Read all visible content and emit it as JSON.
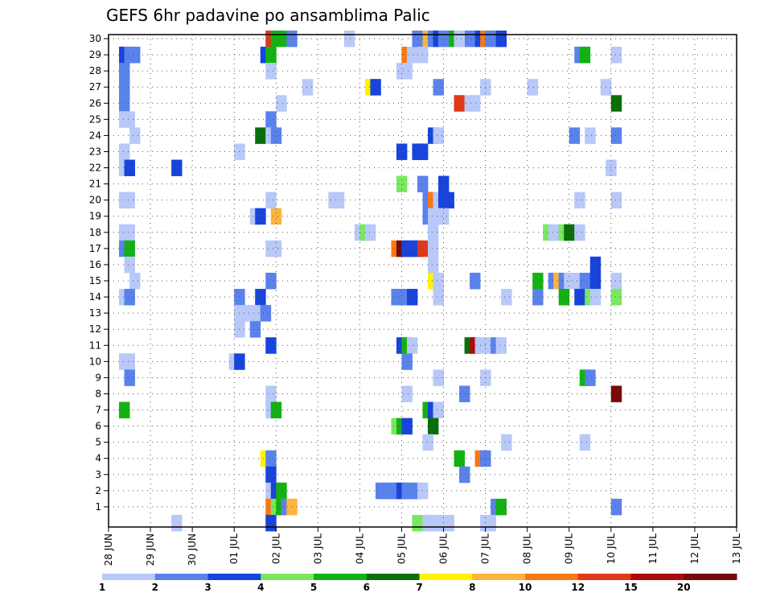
{
  "chart_data": {
    "type": "heatmap",
    "title": "GEFS 6hr padavine po ansamblima Palic",
    "xlabel": "",
    "ylabel": "",
    "x_tick_labels": [
      "28 JUN",
      "29 JUN",
      "30 JUN",
      "01 JUL",
      "02 JUL",
      "03 JUL",
      "04 JUL",
      "05 JUL",
      "06 JUL",
      "07 JUL",
      "08 JUL",
      "09 JUL",
      "10 JUL",
      "11 JUL",
      "12 JUL",
      "13 JUL"
    ],
    "x_range_days": [
      0,
      15
    ],
    "y_tick_labels": [
      "1",
      "2",
      "3",
      "4",
      "5",
      "6",
      "7",
      "8",
      "9",
      "10",
      "11",
      "12",
      "13",
      "14",
      "15",
      "16",
      "17",
      "18",
      "19",
      "20",
      "21",
      "22",
      "23",
      "24",
      "25",
      "26",
      "27",
      "28",
      "29",
      "30"
    ],
    "y_range": [
      0,
      30
    ],
    "grid": true,
    "legend": {
      "placement": "bottom",
      "bin_labels": [
        "1",
        "2",
        "3",
        "4",
        "5",
        "6",
        "7",
        "8",
        "10",
        "12",
        "15",
        "20"
      ],
      "colors": [
        "#b8c8f8",
        "#5a82ec",
        "#1844dc",
        "#7ae85c",
        "#12b212",
        "#0a6e0a",
        "#fff200",
        "#fcb43c",
        "#f87814",
        "#e03818",
        "#aa0c0c",
        "#780a0a"
      ]
    },
    "cells_format": [
      "day_offset",
      "member",
      "color_class"
    ],
    "cells": [
      [
        0.25,
        29,
        2
      ],
      [
        0.25,
        28,
        1
      ],
      [
        0.375,
        29,
        1
      ],
      [
        0.5,
        29,
        1
      ],
      [
        0.25,
        27,
        1
      ],
      [
        0.25,
        26,
        1
      ],
      [
        0.25,
        25,
        0
      ],
      [
        0.375,
        25,
        0
      ],
      [
        0.5,
        24,
        0
      ],
      [
        0.25,
        23,
        0
      ],
      [
        0.25,
        22,
        0
      ],
      [
        0.375,
        22,
        2
      ],
      [
        1.5,
        22,
        2
      ],
      [
        0.25,
        20,
        0
      ],
      [
        0.375,
        20,
        0
      ],
      [
        0.25,
        18,
        0
      ],
      [
        0.375,
        18,
        0
      ],
      [
        0.25,
        17,
        1
      ],
      [
        0.375,
        17,
        4
      ],
      [
        0.375,
        16,
        0
      ],
      [
        0.5,
        15,
        0
      ],
      [
        0.25,
        14,
        0
      ],
      [
        0.375,
        14,
        1
      ],
      [
        0.25,
        10,
        0
      ],
      [
        0.375,
        10,
        0
      ],
      [
        0.375,
        9,
        1
      ],
      [
        0.25,
        7,
        4
      ],
      [
        1.5,
        0,
        0
      ],
      [
        3.75,
        30,
        9
      ],
      [
        3.875,
        30,
        4
      ],
      [
        4,
        30,
        4
      ],
      [
        4.25,
        30,
        1
      ],
      [
        3.625,
        29,
        2
      ],
      [
        3.75,
        29,
        4
      ],
      [
        3.75,
        28,
        0
      ],
      [
        4,
        26,
        0
      ],
      [
        3.75,
        25,
        1
      ],
      [
        3.5,
        24,
        5
      ],
      [
        3.75,
        24,
        0
      ],
      [
        3.875,
        24,
        1
      ],
      [
        3,
        23,
        0
      ],
      [
        3.375,
        19,
        0
      ],
      [
        3.5,
        19,
        2
      ],
      [
        3.875,
        19,
        7
      ],
      [
        3.75,
        20,
        0
      ],
      [
        3.75,
        17,
        0
      ],
      [
        3.875,
        17,
        0
      ],
      [
        3.75,
        15,
        1
      ],
      [
        3,
        14,
        1
      ],
      [
        3.5,
        14,
        2
      ],
      [
        3,
        13,
        0
      ],
      [
        3.125,
        13,
        0
      ],
      [
        3.25,
        13,
        0
      ],
      [
        3.375,
        13,
        0
      ],
      [
        3.625,
        13,
        1
      ],
      [
        3,
        12,
        0
      ],
      [
        3.375,
        12,
        1
      ],
      [
        3.75,
        11,
        2
      ],
      [
        2.875,
        10,
        0
      ],
      [
        3,
        10,
        2
      ],
      [
        3.75,
        8,
        0
      ],
      [
        3.75,
        7,
        0
      ],
      [
        3.875,
        7,
        4
      ],
      [
        3.625,
        4,
        6
      ],
      [
        3.75,
        4,
        1
      ],
      [
        3.75,
        3,
        2
      ],
      [
        3.75,
        2,
        0
      ],
      [
        3.875,
        2,
        2
      ],
      [
        4,
        2,
        4
      ],
      [
        3.75,
        1,
        8
      ],
      [
        3.875,
        1,
        3
      ],
      [
        4,
        1,
        4
      ],
      [
        4.125,
        1,
        1
      ],
      [
        4.25,
        1,
        7
      ],
      [
        3.75,
        0,
        2
      ],
      [
        5.625,
        30,
        0
      ],
      [
        4.625,
        27,
        0
      ],
      [
        6.125,
        27,
        6
      ],
      [
        6.25,
        27,
        2
      ],
      [
        5.25,
        20,
        0
      ],
      [
        5.375,
        20,
        0
      ],
      [
        5.875,
        18,
        0
      ],
      [
        6,
        18,
        3
      ],
      [
        6.125,
        18,
        0
      ],
      [
        6.75,
        17,
        8
      ],
      [
        6.875,
        17,
        11
      ],
      [
        7,
        17,
        2
      ],
      [
        7.125,
        17,
        2
      ],
      [
        7.25,
        17,
        2
      ],
      [
        7.375,
        17,
        9
      ],
      [
        6.875,
        21,
        3
      ],
      [
        6.875,
        23,
        2
      ],
      [
        7.25,
        23,
        2
      ],
      [
        6.75,
        14,
        1
      ],
      [
        6.875,
        14,
        1
      ],
      [
        7,
        14,
        1
      ],
      [
        7.125,
        14,
        2
      ],
      [
        6.875,
        11,
        2
      ],
      [
        7,
        11,
        4
      ],
      [
        7.125,
        11,
        0
      ],
      [
        7,
        10,
        1
      ],
      [
        7,
        8,
        0
      ],
      [
        6.75,
        6,
        3
      ],
      [
        6.875,
        6,
        4
      ],
      [
        7,
        6,
        2
      ],
      [
        6.375,
        2,
        1
      ],
      [
        6.5,
        2,
        1
      ],
      [
        6.625,
        2,
        1
      ],
      [
        6.75,
        2,
        1
      ],
      [
        6.875,
        2,
        2
      ],
      [
        7,
        2,
        1
      ],
      [
        7.125,
        2,
        1
      ],
      [
        7.25,
        2,
        1
      ],
      [
        7.375,
        2,
        0
      ],
      [
        7,
        29,
        8
      ],
      [
        7.125,
        29,
        0
      ],
      [
        6.875,
        28,
        0
      ],
      [
        7,
        28,
        0
      ],
      [
        7.25,
        30,
        1
      ],
      [
        7.375,
        30,
        1
      ],
      [
        7.5,
        30,
        7
      ],
      [
        7.625,
        30,
        1
      ],
      [
        7.75,
        30,
        2
      ],
      [
        7.875,
        30,
        1
      ],
      [
        7.375,
        29,
        0
      ],
      [
        7.75,
        27,
        1
      ],
      [
        7.625,
        24,
        2
      ],
      [
        7.75,
        24,
        0
      ],
      [
        7.375,
        21,
        1
      ],
      [
        7.5,
        20,
        1
      ],
      [
        7.625,
        20,
        8
      ],
      [
        7.75,
        20,
        0
      ],
      [
        7.875,
        20,
        2
      ],
      [
        8,
        20,
        2
      ],
      [
        7.875,
        21,
        2
      ],
      [
        7.375,
        23,
        2
      ],
      [
        7.5,
        19,
        1
      ],
      [
        7.625,
        19,
        0
      ],
      [
        7.75,
        19,
        0
      ],
      [
        7.875,
        19,
        0
      ],
      [
        7.625,
        18,
        0
      ],
      [
        7.625,
        17,
        0
      ],
      [
        7.625,
        16,
        0
      ],
      [
        7.625,
        15,
        6
      ],
      [
        7.75,
        15,
        0
      ],
      [
        7.75,
        14,
        0
      ],
      [
        7.5,
        7,
        4
      ],
      [
        7.625,
        7,
        2
      ],
      [
        7.75,
        7,
        0
      ],
      [
        7.625,
        6,
        5
      ],
      [
        7.5,
        5,
        0
      ],
      [
        7.75,
        9,
        0
      ],
      [
        8.375,
        8,
        1
      ],
      [
        8.25,
        4,
        4
      ],
      [
        8.375,
        3,
        1
      ],
      [
        7.25,
        0,
        3
      ],
      [
        7.5,
        0,
        0
      ],
      [
        7.625,
        0,
        0
      ],
      [
        7.875,
        0,
        0
      ],
      [
        8,
        0,
        0
      ],
      [
        8.5,
        30,
        1
      ],
      [
        8.125,
        30,
        4
      ],
      [
        8.25,
        30,
        0
      ],
      [
        8.75,
        30,
        2
      ],
      [
        8.875,
        30,
        8
      ],
      [
        9,
        30,
        1
      ],
      [
        8.25,
        26,
        9
      ],
      [
        8.5,
        26,
        0
      ],
      [
        8.625,
        26,
        0
      ],
      [
        8.875,
        27,
        0
      ],
      [
        8.625,
        15,
        1
      ],
      [
        8.5,
        11,
        5
      ],
      [
        8.625,
        11,
        10
      ],
      [
        8.75,
        11,
        0
      ],
      [
        9,
        11,
        0
      ],
      [
        9.125,
        11,
        1
      ],
      [
        9.25,
        11,
        0
      ],
      [
        8.875,
        9,
        0
      ],
      [
        8.75,
        4,
        8
      ],
      [
        8.875,
        4,
        1
      ],
      [
        9.125,
        1,
        1
      ],
      [
        9.25,
        1,
        4
      ],
      [
        8.875,
        0,
        0
      ],
      [
        9,
        0,
        0
      ],
      [
        9.375,
        5,
        0
      ],
      [
        9.375,
        14,
        0
      ],
      [
        9.125,
        30,
        1
      ],
      [
        9.25,
        30,
        2
      ],
      [
        11.125,
        29,
        1
      ],
      [
        11.25,
        29,
        4
      ],
      [
        10,
        27,
        0
      ],
      [
        11,
        24,
        1
      ],
      [
        11.375,
        24,
        0
      ],
      [
        11.125,
        20,
        0
      ],
      [
        10.375,
        18,
        3
      ],
      [
        10.5,
        18,
        0
      ],
      [
        10.75,
        18,
        3
      ],
      [
        10.875,
        18,
        5
      ],
      [
        11.125,
        18,
        0
      ],
      [
        11.5,
        16,
        2
      ],
      [
        10.125,
        15,
        4
      ],
      [
        10.5,
        15,
        1
      ],
      [
        10.625,
        15,
        7
      ],
      [
        10.75,
        15,
        1
      ],
      [
        10.875,
        15,
        0
      ],
      [
        11.125,
        15,
        0
      ],
      [
        11.25,
        15,
        1
      ],
      [
        11.5,
        15,
        2
      ],
      [
        10.125,
        14,
        1
      ],
      [
        10.75,
        14,
        4
      ],
      [
        11.125,
        14,
        2
      ],
      [
        11.375,
        14,
        3
      ],
      [
        11.5,
        14,
        0
      ],
      [
        11.25,
        9,
        4
      ],
      [
        11.375,
        9,
        1
      ],
      [
        11.25,
        5,
        0
      ],
      [
        11.75,
        27,
        0
      ],
      [
        11.875,
        22,
        0
      ],
      [
        12,
        26,
        5
      ],
      [
        12,
        24,
        1
      ],
      [
        12,
        20,
        0
      ],
      [
        12,
        15,
        0
      ],
      [
        12,
        14,
        3
      ],
      [
        12,
        8,
        11
      ],
      [
        12,
        1,
        1
      ],
      [
        12,
        29,
        0
      ]
    ]
  }
}
